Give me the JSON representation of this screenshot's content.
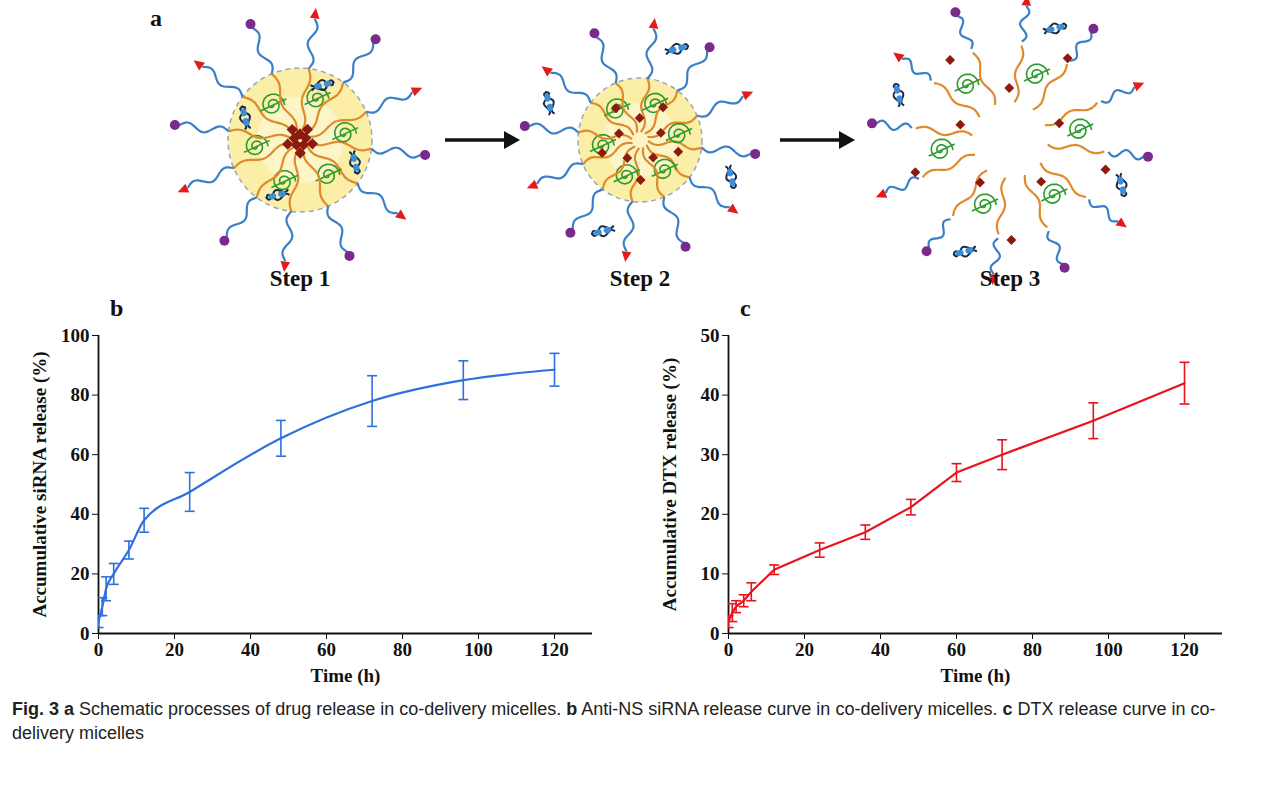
{
  "figure": {
    "panels": [
      {
        "letter": "a",
        "steps": [
          "Step 1",
          "Step 2",
          "Step 3"
        ]
      },
      {
        "letter": "b"
      },
      {
        "letter": "c"
      }
    ],
    "caption": {
      "figure": "Fig. 3",
      "parts": [
        {
          "letter": "a",
          "text": "Schematic processes of drug release in co-delivery micelles."
        },
        {
          "letter": "b",
          "text": "Anti-NS siRNA release curve in co-delivery micelles."
        },
        {
          "letter": "c",
          "text": "DTX release curve in co-delivery micelles"
        }
      ]
    }
  },
  "chart_data": [
    {
      "type": "line",
      "xlabel": "Time (h)",
      "ylabel": "Accumulative siRNA release (%)",
      "x": [
        0,
        1,
        2,
        4,
        8,
        12,
        24,
        48,
        72,
        96,
        120
      ],
      "values": [
        4,
        9,
        15,
        20,
        28,
        38,
        47.5,
        65.5,
        78,
        85,
        88.5
      ],
      "errors": [
        2,
        3,
        4,
        3.5,
        3,
        4,
        6.5,
        6,
        8.5,
        6.5,
        5.5
      ],
      "color": "#2f6fdf",
      "xlim": [
        0,
        130
      ],
      "xticks": [
        0,
        20,
        40,
        60,
        80,
        100,
        120
      ],
      "ylim": [
        0,
        100
      ],
      "yticks": [
        0,
        20,
        40,
        60,
        80,
        100
      ],
      "grid": false
    },
    {
      "type": "line",
      "xlabel": "Time (h)",
      "ylabel": "Accumulative DTX release (%)",
      "x": [
        0,
        1,
        2,
        4,
        6,
        12,
        24,
        36,
        48,
        60,
        72,
        96,
        120
      ],
      "values": [
        2,
        3.5,
        4.5,
        5.5,
        7,
        10.7,
        14,
        17,
        21.2,
        27,
        30,
        35.7,
        42
      ],
      "errors": [
        1,
        1.5,
        1,
        1,
        1.5,
        0.8,
        1.2,
        1.2,
        1.3,
        1.5,
        2.5,
        3,
        3.5
      ],
      "color": "#e8141c",
      "xlim": [
        0,
        130
      ],
      "xticks": [
        0,
        20,
        40,
        60,
        80,
        100,
        120
      ],
      "ylim": [
        0,
        50
      ],
      "yticks": [
        0,
        10,
        20,
        30,
        40,
        50
      ],
      "grid": false
    }
  ]
}
